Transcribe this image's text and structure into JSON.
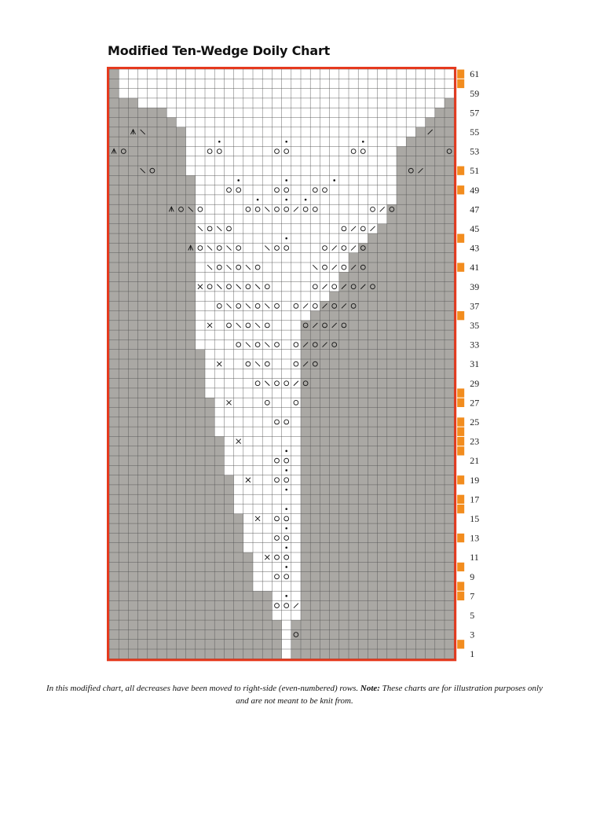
{
  "title": "Modified Ten-Wedge Doily Chart",
  "caption": {
    "text": "In this modified chart, all decreases have been moved to right-side (even-numbered) rows.",
    "note_label": "Note:",
    "note_text": "These charts are for illustration purposes only and are not meant to be knit from."
  },
  "chart": {
    "columns": 36,
    "rows": 61,
    "row_labels": [
      "61",
      "59",
      "57",
      "55",
      "53",
      "51",
      "49",
      "47",
      "45",
      "43",
      "41",
      "39",
      "37",
      "35",
      "33",
      "31",
      "29",
      "27",
      "25",
      "23",
      "21",
      "19",
      "17",
      "15",
      "13",
      "11",
      "9",
      "7",
      "5",
      "3",
      "1"
    ],
    "white_span_per_row_bottom_to_top": [
      [
        19,
        19
      ],
      [
        19,
        19
      ],
      [
        19,
        19
      ],
      [
        19,
        19
      ],
      [
        18,
        20
      ],
      [
        18,
        20
      ],
      [
        18,
        20
      ],
      [
        16,
        20
      ],
      [
        16,
        20
      ],
      [
        16,
        20
      ],
      [
        16,
        20
      ],
      [
        15,
        20
      ],
      [
        15,
        20
      ],
      [
        15,
        20
      ],
      [
        15,
        20
      ],
      [
        14,
        20
      ],
      [
        14,
        20
      ],
      [
        14,
        20
      ],
      [
        14,
        20
      ],
      [
        13,
        20
      ],
      [
        13,
        20
      ],
      [
        13,
        20
      ],
      [
        13,
        20
      ],
      [
        12,
        20
      ],
      [
        12,
        20
      ],
      [
        12,
        20
      ],
      [
        12,
        20
      ],
      [
        11,
        20
      ],
      [
        11,
        20
      ],
      [
        11,
        20
      ],
      [
        11,
        20
      ],
      [
        11,
        20
      ],
      [
        10,
        20
      ],
      [
        10,
        20
      ],
      [
        10,
        20
      ],
      [
        10,
        21
      ],
      [
        10,
        22
      ],
      [
        10,
        23
      ],
      [
        10,
        24
      ],
      [
        10,
        24
      ],
      [
        10,
        25
      ],
      [
        10,
        25
      ],
      [
        10,
        26
      ],
      [
        10,
        27
      ],
      [
        10,
        28
      ],
      [
        10,
        29
      ],
      [
        10,
        29
      ],
      [
        10,
        30
      ],
      [
        10,
        30
      ],
      [
        10,
        30
      ],
      [
        9,
        30
      ],
      [
        9,
        30
      ],
      [
        9,
        30
      ],
      [
        9,
        31
      ],
      [
        9,
        32
      ],
      [
        8,
        33
      ],
      [
        7,
        34
      ],
      [
        4,
        35
      ],
      [
        2,
        36
      ],
      [
        2,
        36
      ],
      [
        2,
        36
      ]
    ],
    "orange_marker_rows": [
      2,
      7,
      8,
      10,
      13,
      16,
      17,
      19,
      22,
      23,
      24,
      25,
      27,
      28,
      36,
      41,
      44,
      49,
      51,
      60,
      61
    ],
    "symbols": [
      {
        "row": 3,
        "col": 20,
        "sym": "O"
      },
      {
        "row": 6,
        "col": 18,
        "sym": "O"
      },
      {
        "row": 6,
        "col": 19,
        "sym": "O"
      },
      {
        "row": 6,
        "col": 20,
        "sym": "/"
      },
      {
        "row": 7,
        "col": 19,
        "sym": "•"
      },
      {
        "row": 9,
        "col": 18,
        "sym": "O"
      },
      {
        "row": 9,
        "col": 19,
        "sym": "O"
      },
      {
        "row": 10,
        "col": 19,
        "sym": "•"
      },
      {
        "row": 11,
        "col": 17,
        "sym": "%"
      },
      {
        "row": 11,
        "col": 18,
        "sym": "O"
      },
      {
        "row": 11,
        "col": 19,
        "sym": "O"
      },
      {
        "row": 12,
        "col": 19,
        "sym": "•"
      },
      {
        "row": 13,
        "col": 18,
        "sym": "O"
      },
      {
        "row": 13,
        "col": 19,
        "sym": "O"
      },
      {
        "row": 14,
        "col": 19,
        "sym": "•"
      },
      {
        "row": 15,
        "col": 16,
        "sym": "%"
      },
      {
        "row": 15,
        "col": 18,
        "sym": "O"
      },
      {
        "row": 15,
        "col": 19,
        "sym": "O"
      },
      {
        "row": 16,
        "col": 19,
        "sym": "•"
      },
      {
        "row": 18,
        "col": 19,
        "sym": "•"
      },
      {
        "row": 19,
        "col": 15,
        "sym": "%"
      },
      {
        "row": 19,
        "col": 18,
        "sym": "O"
      },
      {
        "row": 19,
        "col": 19,
        "sym": "O"
      },
      {
        "row": 20,
        "col": 19,
        "sym": "•"
      },
      {
        "row": 21,
        "col": 18,
        "sym": "O"
      },
      {
        "row": 21,
        "col": 19,
        "sym": "O"
      },
      {
        "row": 22,
        "col": 19,
        "sym": "•"
      },
      {
        "row": 23,
        "col": 14,
        "sym": "%"
      },
      {
        "row": 25,
        "col": 18,
        "sym": "O"
      },
      {
        "row": 25,
        "col": 19,
        "sym": "O"
      },
      {
        "row": 27,
        "col": 13,
        "sym": "%"
      },
      {
        "row": 27,
        "col": 17,
        "sym": "O"
      },
      {
        "row": 27,
        "col": 20,
        "sym": "O"
      },
      {
        "row": 29,
        "col": 16,
        "sym": "O"
      },
      {
        "row": 29,
        "col": 17,
        "sym": "\\"
      },
      {
        "row": 29,
        "col": 18,
        "sym": "O"
      },
      {
        "row": 29,
        "col": 19,
        "sym": "O"
      },
      {
        "row": 29,
        "col": 20,
        "sym": "/"
      },
      {
        "row": 29,
        "col": 21,
        "sym": "O"
      },
      {
        "row": 31,
        "col": 12,
        "sym": "%"
      },
      {
        "row": 31,
        "col": 15,
        "sym": "O"
      },
      {
        "row": 31,
        "col": 16,
        "sym": "\\"
      },
      {
        "row": 31,
        "col": 17,
        "sym": "O"
      },
      {
        "row": 31,
        "col": 20,
        "sym": "O"
      },
      {
        "row": 31,
        "col": 21,
        "sym": "/"
      },
      {
        "row": 31,
        "col": 22,
        "sym": "O"
      },
      {
        "row": 33,
        "col": 14,
        "sym": "O"
      },
      {
        "row": 33,
        "col": 15,
        "sym": "\\"
      },
      {
        "row": 33,
        "col": 16,
        "sym": "O"
      },
      {
        "row": 33,
        "col": 17,
        "sym": "\\"
      },
      {
        "row": 33,
        "col": 18,
        "sym": "O"
      },
      {
        "row": 33,
        "col": 20,
        "sym": "O"
      },
      {
        "row": 33,
        "col": 21,
        "sym": "/"
      },
      {
        "row": 33,
        "col": 22,
        "sym": "O"
      },
      {
        "row": 33,
        "col": 23,
        "sym": "/"
      },
      {
        "row": 33,
        "col": 24,
        "sym": "O"
      },
      {
        "row": 35,
        "col": 11,
        "sym": "%"
      },
      {
        "row": 35,
        "col": 13,
        "sym": "O"
      },
      {
        "row": 35,
        "col": 14,
        "sym": "\\"
      },
      {
        "row": 35,
        "col": 15,
        "sym": "O"
      },
      {
        "row": 35,
        "col": 16,
        "sym": "\\"
      },
      {
        "row": 35,
        "col": 17,
        "sym": "O"
      },
      {
        "row": 35,
        "col": 21,
        "sym": "O"
      },
      {
        "row": 35,
        "col": 22,
        "sym": "/"
      },
      {
        "row": 35,
        "col": 23,
        "sym": "O"
      },
      {
        "row": 35,
        "col": 24,
        "sym": "/"
      },
      {
        "row": 35,
        "col": 25,
        "sym": "O"
      },
      {
        "row": 37,
        "col": 12,
        "sym": "O"
      },
      {
        "row": 37,
        "col": 13,
        "sym": "\\"
      },
      {
        "row": 37,
        "col": 14,
        "sym": "O"
      },
      {
        "row": 37,
        "col": 15,
        "sym": "\\"
      },
      {
        "row": 37,
        "col": 16,
        "sym": "O"
      },
      {
        "row": 37,
        "col": 17,
        "sym": "\\"
      },
      {
        "row": 37,
        "col": 18,
        "sym": "O"
      },
      {
        "row": 37,
        "col": 20,
        "sym": "O"
      },
      {
        "row": 37,
        "col": 21,
        "sym": "/"
      },
      {
        "row": 37,
        "col": 22,
        "sym": "O"
      },
      {
        "row": 37,
        "col": 23,
        "sym": "/"
      },
      {
        "row": 37,
        "col": 24,
        "sym": "O"
      },
      {
        "row": 37,
        "col": 25,
        "sym": "/"
      },
      {
        "row": 37,
        "col": 26,
        "sym": "O"
      },
      {
        "row": 39,
        "col": 10,
        "sym": "%"
      },
      {
        "row": 39,
        "col": 11,
        "sym": "O"
      },
      {
        "row": 39,
        "col": 12,
        "sym": "\\"
      },
      {
        "row": 39,
        "col": 13,
        "sym": "O"
      },
      {
        "row": 39,
        "col": 14,
        "sym": "\\"
      },
      {
        "row": 39,
        "col": 15,
        "sym": "O"
      },
      {
        "row": 39,
        "col": 16,
        "sym": "\\"
      },
      {
        "row": 39,
        "col": 17,
        "sym": "O"
      },
      {
        "row": 39,
        "col": 22,
        "sym": "O"
      },
      {
        "row": 39,
        "col": 23,
        "sym": "/"
      },
      {
        "row": 39,
        "col": 24,
        "sym": "O"
      },
      {
        "row": 39,
        "col": 25,
        "sym": "/"
      },
      {
        "row": 39,
        "col": 26,
        "sym": "O"
      },
      {
        "row": 39,
        "col": 27,
        "sym": "/"
      },
      {
        "row": 39,
        "col": 28,
        "sym": "O"
      },
      {
        "row": 41,
        "col": 11,
        "sym": "\\"
      },
      {
        "row": 41,
        "col": 12,
        "sym": "O"
      },
      {
        "row": 41,
        "col": 13,
        "sym": "\\"
      },
      {
        "row": 41,
        "col": 14,
        "sym": "O"
      },
      {
        "row": 41,
        "col": 15,
        "sym": "\\"
      },
      {
        "row": 41,
        "col": 16,
        "sym": "O"
      },
      {
        "row": 41,
        "col": 22,
        "sym": "\\"
      },
      {
        "row": 41,
        "col": 23,
        "sym": "O"
      },
      {
        "row": 41,
        "col": 24,
        "sym": "/"
      },
      {
        "row": 41,
        "col": 25,
        "sym": "O"
      },
      {
        "row": 41,
        "col": 26,
        "sym": "/"
      },
      {
        "row": 41,
        "col": 27,
        "sym": "O"
      },
      {
        "row": 43,
        "col": 9,
        "sym": "^"
      },
      {
        "row": 43,
        "col": 10,
        "sym": "O"
      },
      {
        "row": 43,
        "col": 11,
        "sym": "\\"
      },
      {
        "row": 43,
        "col": 12,
        "sym": "O"
      },
      {
        "row": 43,
        "col": 13,
        "sym": "\\"
      },
      {
        "row": 43,
        "col": 14,
        "sym": "O"
      },
      {
        "row": 43,
        "col": 17,
        "sym": "\\"
      },
      {
        "row": 43,
        "col": 18,
        "sym": "O"
      },
      {
        "row": 43,
        "col": 19,
        "sym": "O"
      },
      {
        "row": 43,
        "col": 23,
        "sym": "O"
      },
      {
        "row": 43,
        "col": 24,
        "sym": "/"
      },
      {
        "row": 43,
        "col": 25,
        "sym": "O"
      },
      {
        "row": 43,
        "col": 26,
        "sym": "/"
      },
      {
        "row": 43,
        "col": 27,
        "sym": "O"
      },
      {
        "row": 44,
        "col": 19,
        "sym": "•"
      },
      {
        "row": 45,
        "col": 10,
        "sym": "\\"
      },
      {
        "row": 45,
        "col": 11,
        "sym": "O"
      },
      {
        "row": 45,
        "col": 12,
        "sym": "\\"
      },
      {
        "row": 45,
        "col": 13,
        "sym": "O"
      },
      {
        "row": 45,
        "col": 25,
        "sym": "O"
      },
      {
        "row": 45,
        "col": 26,
        "sym": "/"
      },
      {
        "row": 45,
        "col": 27,
        "sym": "O"
      },
      {
        "row": 45,
        "col": 28,
        "sym": "/"
      },
      {
        "row": 47,
        "col": 7,
        "sym": "^"
      },
      {
        "row": 47,
        "col": 8,
        "sym": "O"
      },
      {
        "row": 47,
        "col": 9,
        "sym": "\\"
      },
      {
        "row": 47,
        "col": 10,
        "sym": "O"
      },
      {
        "row": 47,
        "col": 15,
        "sym": "O"
      },
      {
        "row": 47,
        "col": 16,
        "sym": "O"
      },
      {
        "row": 47,
        "col": 17,
        "sym": "\\"
      },
      {
        "row": 47,
        "col": 18,
        "sym": "O"
      },
      {
        "row": 47,
        "col": 19,
        "sym": "O"
      },
      {
        "row": 47,
        "col": 20,
        "sym": "/"
      },
      {
        "row": 47,
        "col": 21,
        "sym": "O"
      },
      {
        "row": 47,
        "col": 22,
        "sym": "O"
      },
      {
        "row": 47,
        "col": 28,
        "sym": "O"
      },
      {
        "row": 47,
        "col": 29,
        "sym": "/"
      },
      {
        "row": 47,
        "col": 30,
        "sym": "O"
      },
      {
        "row": 48,
        "col": 16,
        "sym": "•"
      },
      {
        "row": 48,
        "col": 19,
        "sym": "•"
      },
      {
        "row": 48,
        "col": 21,
        "sym": "•"
      },
      {
        "row": 49,
        "col": 13,
        "sym": "O"
      },
      {
        "row": 49,
        "col": 14,
        "sym": "O"
      },
      {
        "row": 49,
        "col": 18,
        "sym": "O"
      },
      {
        "row": 49,
        "col": 19,
        "sym": "O"
      },
      {
        "row": 49,
        "col": 22,
        "sym": "O"
      },
      {
        "row": 49,
        "col": 23,
        "sym": "O"
      },
      {
        "row": 50,
        "col": 14,
        "sym": "•"
      },
      {
        "row": 50,
        "col": 19,
        "sym": "•"
      },
      {
        "row": 50,
        "col": 24,
        "sym": "•"
      },
      {
        "row": 51,
        "col": 4,
        "sym": "\\"
      },
      {
        "row": 51,
        "col": 5,
        "sym": "O"
      },
      {
        "row": 51,
        "col": 32,
        "sym": "O"
      },
      {
        "row": 51,
        "col": 33,
        "sym": "/"
      },
      {
        "row": 53,
        "col": 1,
        "sym": "^"
      },
      {
        "row": 53,
        "col": 2,
        "sym": "O"
      },
      {
        "row": 53,
        "col": 11,
        "sym": "O"
      },
      {
        "row": 53,
        "col": 12,
        "sym": "O"
      },
      {
        "row": 53,
        "col": 18,
        "sym": "O"
      },
      {
        "row": 53,
        "col": 19,
        "sym": "O"
      },
      {
        "row": 53,
        "col": 26,
        "sym": "O"
      },
      {
        "row": 53,
        "col": 27,
        "sym": "O"
      },
      {
        "row": 53,
        "col": 36,
        "sym": "O"
      },
      {
        "row": 54,
        "col": 12,
        "sym": "•"
      },
      {
        "row": 54,
        "col": 19,
        "sym": "•"
      },
      {
        "row": 54,
        "col": 27,
        "sym": "•"
      },
      {
        "row": 55,
        "col": 3,
        "sym": "^"
      },
      {
        "row": 55,
        "col": 4,
        "sym": "\\"
      },
      {
        "row": 55,
        "col": 34,
        "sym": "/"
      }
    ]
  }
}
